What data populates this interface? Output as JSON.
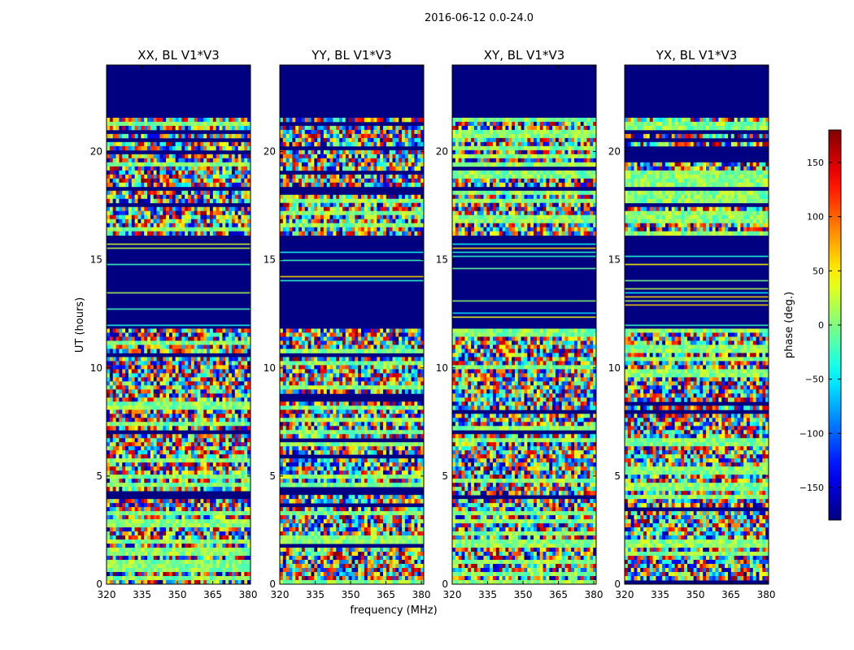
{
  "chart_data": {
    "type": "heatmap",
    "suptitle": "2016-06-12 0.0-24.0",
    "xlabel": "frequency (MHz)",
    "ylabel": "UT (hours)",
    "xlim": [
      320,
      381
    ],
    "ylim": [
      0,
      24
    ],
    "xticks": [
      320,
      335,
      350,
      365,
      380
    ],
    "yticks": [
      0,
      5,
      10,
      15,
      20
    ],
    "colormap": "jet",
    "colorbar": {
      "label": "phase (deg.)",
      "range": [
        -180,
        180
      ],
      "ticks": [
        -150,
        -100,
        -50,
        0,
        50,
        100,
        150
      ],
      "tick_labels": [
        "−150",
        "−100",
        "−50",
        "0",
        "50",
        "100",
        "150"
      ]
    },
    "panels": [
      {
        "title": "XX, BL V1*V3",
        "polarization": "XX"
      },
      {
        "title": "YY, BL V1*V3",
        "polarization": "YY"
      },
      {
        "title": "XY, BL V1*V3",
        "polarization": "XY"
      },
      {
        "title": "YX, BL V1*V3",
        "polarization": "YX"
      }
    ],
    "flagged_ut_ranges_hours": [
      [
        0.0,
        0.05
      ],
      [
        15.75,
        16.05
      ],
      [
        18.2,
        18.4
      ],
      [
        21.65,
        24.0
      ]
    ],
    "flagged_phase_value": -180,
    "noisy_ut_ranges_hours": [
      [
        0.05,
        11.9
      ],
      [
        16.05,
        18.2
      ],
      [
        18.4,
        21.65
      ]
    ],
    "sparse_ut_range_hours": [
      11.9,
      15.75
    ]
  }
}
